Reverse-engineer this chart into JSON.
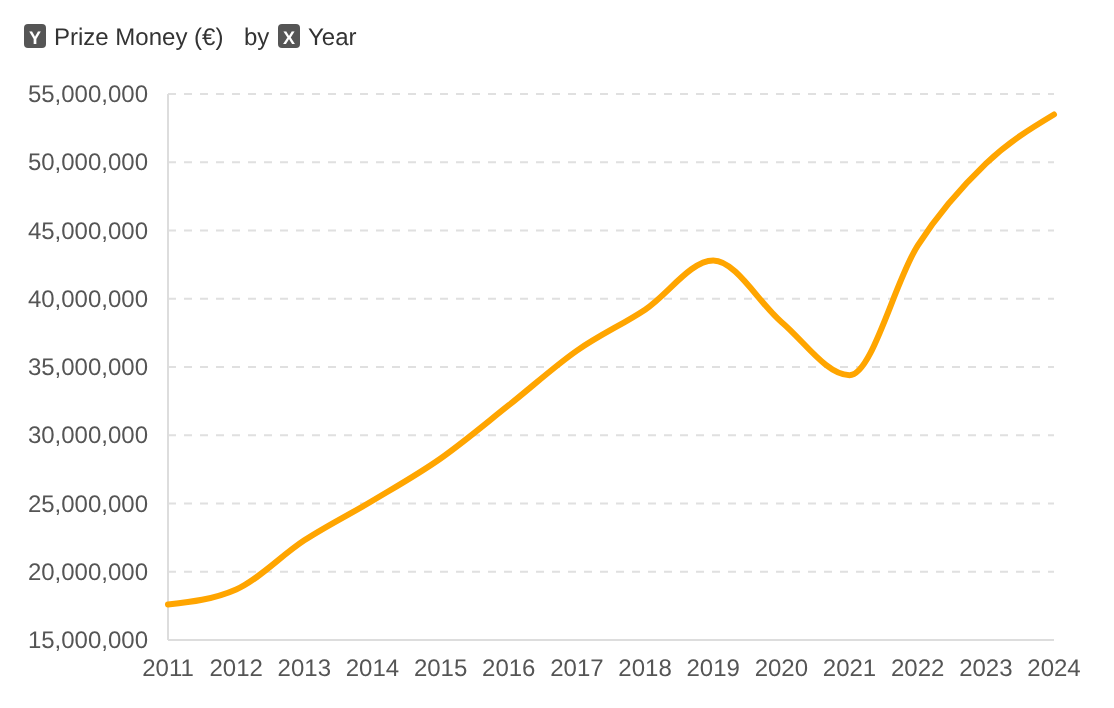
{
  "chart_data": {
    "type": "line",
    "ylabel": "Prize Money (€)",
    "xlabel": "Year",
    "annotations": [
      "Y",
      "by",
      "X"
    ],
    "x": [
      2011,
      2012,
      2013,
      2014,
      2015,
      2016,
      2017,
      2018,
      2019,
      2020,
      2021,
      2022,
      2023,
      2024
    ],
    "series": [
      {
        "color": "#ffa500",
        "values": [
          17600000,
          18700000,
          22300000,
          25200000,
          28300000,
          32200000,
          36200000,
          39200000,
          42800000,
          38300000,
          34400000,
          43900000,
          49900000,
          53500000
        ]
      }
    ],
    "xlim": [
      2011,
      2024
    ],
    "xticks": [
      2011,
      2012,
      2013,
      2014,
      2015,
      2016,
      2017,
      2018,
      2019,
      2020,
      2021,
      2022,
      2023,
      2024
    ],
    "ylim": [
      15000000,
      55000000
    ],
    "yticks": [
      {
        "value": 15000000,
        "label": "15,000,000"
      },
      {
        "value": 20000000,
        "label": "20,000,000"
      },
      {
        "value": 25000000,
        "label": "25,000,000"
      },
      {
        "value": 30000000,
        "label": "30,000,000"
      },
      {
        "value": 35000000,
        "label": "35,000,000"
      },
      {
        "value": 40000000,
        "label": "40,000,000"
      },
      {
        "value": 45000000,
        "label": "45,000,000"
      },
      {
        "value": 50000000,
        "label": "50,000,000"
      },
      {
        "value": 55000000,
        "label": "55,000,000"
      }
    ],
    "grid": "y",
    "marker": "none",
    "line_style": "solid"
  }
}
